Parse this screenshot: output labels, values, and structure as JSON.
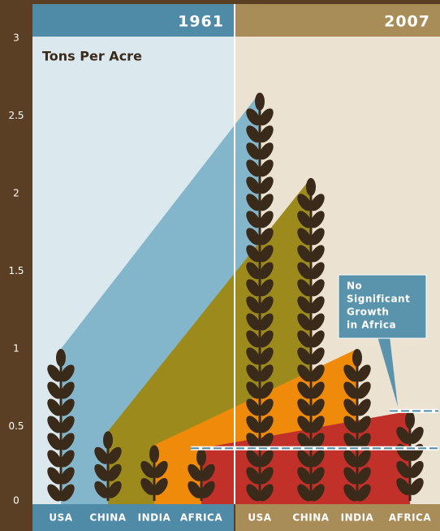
{
  "chart_data": {
    "type": "wheat-slope",
    "y_label": "Tons Per Acre",
    "categories": [
      "USA",
      "CHINA",
      "INDIA",
      "AFRICA"
    ],
    "colors": [
      "#84b6cb",
      "#9c8b1c",
      "#ef8a0a",
      "#c2302a"
    ],
    "series": [
      {
        "name": "1961",
        "values": [
          1.0,
          0.47,
          0.38,
          0.36
        ]
      },
      {
        "name": "2007",
        "values": [
          2.65,
          2.1,
          1.0,
          0.6
        ]
      }
    ],
    "annotation": [
      "No",
      "Significant",
      "Growth",
      "in Africa"
    ],
    "ylim": [
      0,
      3
    ],
    "yticks": [
      0,
      0.5,
      1,
      1.5,
      2,
      2.5,
      3
    ]
  }
}
